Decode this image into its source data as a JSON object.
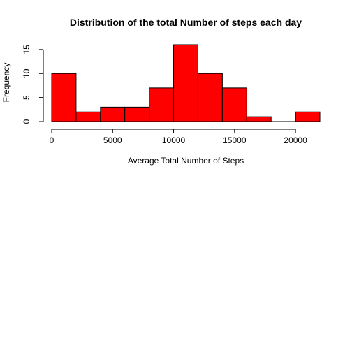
{
  "chart_data": {
    "type": "bar",
    "title": "Distribution of the total Number of steps each day",
    "xlabel": "Average Total Number of Steps",
    "ylabel": "Frequency",
    "bin_edges": [
      0,
      2000,
      4000,
      6000,
      8000,
      10000,
      12000,
      14000,
      16000,
      18000,
      20000,
      22000
    ],
    "values": [
      10,
      2,
      3,
      3,
      7,
      16,
      10,
      7,
      1,
      0,
      2
    ],
    "xlim": [
      0,
      22000
    ],
    "ylim": [
      0,
      16
    ],
    "x_ticks": [
      0,
      5000,
      10000,
      15000,
      20000
    ],
    "y_ticks": [
      0,
      5,
      10,
      15
    ],
    "bar_color": "#ff0000",
    "grid": false
  }
}
